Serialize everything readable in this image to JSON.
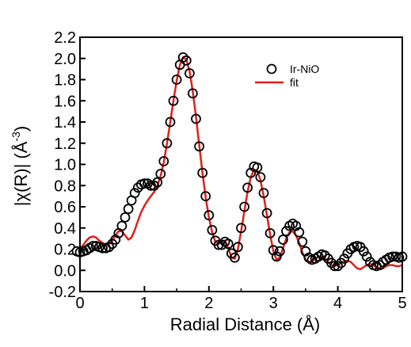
{
  "chart_data": {
    "type": "scatter",
    "xlabel": "Radial Distance (Å)",
    "ylabel": "|χ(R)| (Å",
    "ylabel_sup": "-3",
    "ylabel_close": ")",
    "xlim": [
      0,
      5
    ],
    "ylim": [
      -0.2,
      2.2
    ],
    "x_ticks": [
      0,
      1,
      2,
      3,
      4,
      5
    ],
    "x_tick_labels": [
      "0",
      "1",
      "2",
      "3",
      "4",
      "5"
    ],
    "y_ticks": [
      -0.2,
      0.0,
      0.2,
      0.4,
      0.6,
      0.8,
      1.0,
      1.2,
      1.4,
      1.6,
      1.8,
      2.0,
      2.2
    ],
    "y_tick_labels": [
      "-0.2",
      "0.0",
      "0.2",
      "0.4",
      "0.6",
      "0.8",
      "1.0",
      "1.2",
      "1.4",
      "1.6",
      "1.8",
      "2.0",
      "2.2"
    ],
    "grid": false,
    "legend_position": "top-right",
    "series": [
      {
        "name": "Ir-NiO",
        "style": "open-circle",
        "color": "#000000",
        "points": [
          [
            -0.05,
            0.18
          ],
          [
            0.0,
            0.17
          ],
          [
            0.05,
            0.18
          ],
          [
            0.1,
            0.19
          ],
          [
            0.15,
            0.21
          ],
          [
            0.2,
            0.23
          ],
          [
            0.25,
            0.23
          ],
          [
            0.3,
            0.22
          ],
          [
            0.35,
            0.21
          ],
          [
            0.4,
            0.21
          ],
          [
            0.45,
            0.22
          ],
          [
            0.5,
            0.25
          ],
          [
            0.55,
            0.29
          ],
          [
            0.6,
            0.35
          ],
          [
            0.65,
            0.42
          ],
          [
            0.7,
            0.5
          ],
          [
            0.75,
            0.58
          ],
          [
            0.8,
            0.66
          ],
          [
            0.85,
            0.73
          ],
          [
            0.9,
            0.78
          ],
          [
            0.95,
            0.81
          ],
          [
            1.0,
            0.82
          ],
          [
            1.05,
            0.82
          ],
          [
            1.1,
            0.8
          ],
          [
            1.15,
            0.8
          ],
          [
            1.2,
            0.83
          ],
          [
            1.25,
            0.91
          ],
          [
            1.3,
            1.03
          ],
          [
            1.35,
            1.2
          ],
          [
            1.4,
            1.4
          ],
          [
            1.45,
            1.6
          ],
          [
            1.5,
            1.8
          ],
          [
            1.55,
            1.94
          ],
          [
            1.6,
            2.01
          ],
          [
            1.65,
            1.98
          ],
          [
            1.7,
            1.86
          ],
          [
            1.75,
            1.67
          ],
          [
            1.8,
            1.43
          ],
          [
            1.85,
            1.17
          ],
          [
            1.9,
            0.92
          ],
          [
            1.95,
            0.7
          ],
          [
            2.0,
            0.52
          ],
          [
            2.05,
            0.38
          ],
          [
            2.1,
            0.28
          ],
          [
            2.15,
            0.24
          ],
          [
            2.2,
            0.24
          ],
          [
            2.25,
            0.27
          ],
          [
            2.3,
            0.25
          ],
          [
            2.35,
            0.16
          ],
          [
            2.4,
            0.12
          ],
          [
            2.45,
            0.22
          ],
          [
            2.5,
            0.4
          ],
          [
            2.55,
            0.6
          ],
          [
            2.6,
            0.78
          ],
          [
            2.65,
            0.92
          ],
          [
            2.7,
            0.98
          ],
          [
            2.75,
            0.97
          ],
          [
            2.8,
            0.88
          ],
          [
            2.85,
            0.73
          ],
          [
            2.9,
            0.54
          ],
          [
            2.95,
            0.35
          ],
          [
            3.0,
            0.19
          ],
          [
            3.05,
            0.13
          ],
          [
            3.1,
            0.18
          ],
          [
            3.15,
            0.29
          ],
          [
            3.2,
            0.37
          ],
          [
            3.25,
            0.42
          ],
          [
            3.3,
            0.44
          ],
          [
            3.35,
            0.42
          ],
          [
            3.4,
            0.36
          ],
          [
            3.45,
            0.27
          ],
          [
            3.5,
            0.18
          ],
          [
            3.55,
            0.12
          ],
          [
            3.6,
            0.1
          ],
          [
            3.65,
            0.11
          ],
          [
            3.7,
            0.13
          ],
          [
            3.75,
            0.15
          ],
          [
            3.8,
            0.14
          ],
          [
            3.85,
            0.11
          ],
          [
            3.9,
            0.07
          ],
          [
            3.95,
            0.04
          ],
          [
            4.0,
            0.04
          ],
          [
            4.05,
            0.07
          ],
          [
            4.1,
            0.11
          ],
          [
            4.15,
            0.16
          ],
          [
            4.2,
            0.2
          ],
          [
            4.25,
            0.22
          ],
          [
            4.3,
            0.23
          ],
          [
            4.35,
            0.22
          ],
          [
            4.4,
            0.18
          ],
          [
            4.45,
            0.13
          ],
          [
            4.5,
            0.08
          ],
          [
            4.55,
            0.05
          ],
          [
            4.6,
            0.04
          ],
          [
            4.65,
            0.05
          ],
          [
            4.7,
            0.08
          ],
          [
            4.75,
            0.1
          ],
          [
            4.8,
            0.12
          ],
          [
            4.85,
            0.13
          ],
          [
            4.9,
            0.13
          ],
          [
            4.95,
            0.12
          ],
          [
            5.0,
            0.13
          ]
        ]
      },
      {
        "name": "fit",
        "style": "line",
        "color": "#e0201a",
        "points": [
          [
            0.0,
            0.2
          ],
          [
            0.05,
            0.24
          ],
          [
            0.1,
            0.28
          ],
          [
            0.15,
            0.31
          ],
          [
            0.2,
            0.32
          ],
          [
            0.25,
            0.31
          ],
          [
            0.3,
            0.28
          ],
          [
            0.35,
            0.26
          ],
          [
            0.4,
            0.24
          ],
          [
            0.45,
            0.25
          ],
          [
            0.5,
            0.28
          ],
          [
            0.55,
            0.33
          ],
          [
            0.6,
            0.37
          ],
          [
            0.65,
            0.37
          ],
          [
            0.7,
            0.33
          ],
          [
            0.75,
            0.29
          ],
          [
            0.8,
            0.31
          ],
          [
            0.85,
            0.38
          ],
          [
            0.9,
            0.47
          ],
          [
            0.95,
            0.55
          ],
          [
            1.0,
            0.61
          ],
          [
            1.05,
            0.66
          ],
          [
            1.1,
            0.7
          ],
          [
            1.15,
            0.74
          ],
          [
            1.2,
            0.8
          ],
          [
            1.25,
            0.89
          ],
          [
            1.3,
            1.02
          ],
          [
            1.35,
            1.2
          ],
          [
            1.4,
            1.4
          ],
          [
            1.45,
            1.6
          ],
          [
            1.5,
            1.79
          ],
          [
            1.55,
            1.94
          ],
          [
            1.6,
            2.01
          ],
          [
            1.65,
            1.99
          ],
          [
            1.7,
            1.88
          ],
          [
            1.75,
            1.69
          ],
          [
            1.8,
            1.45
          ],
          [
            1.85,
            1.18
          ],
          [
            1.9,
            0.92
          ],
          [
            1.95,
            0.69
          ],
          [
            2.0,
            0.5
          ],
          [
            2.05,
            0.36
          ],
          [
            2.1,
            0.27
          ],
          [
            2.15,
            0.25
          ],
          [
            2.2,
            0.28
          ],
          [
            2.25,
            0.28
          ],
          [
            2.3,
            0.21
          ],
          [
            2.35,
            0.12
          ],
          [
            2.4,
            0.11
          ],
          [
            2.45,
            0.2
          ],
          [
            2.5,
            0.37
          ],
          [
            2.55,
            0.56
          ],
          [
            2.6,
            0.74
          ],
          [
            2.65,
            0.88
          ],
          [
            2.7,
            0.95
          ],
          [
            2.75,
            0.94
          ],
          [
            2.8,
            0.85
          ],
          [
            2.85,
            0.7
          ],
          [
            2.9,
            0.52
          ],
          [
            2.95,
            0.34
          ],
          [
            3.0,
            0.18
          ],
          [
            3.05,
            0.1
          ],
          [
            3.1,
            0.12
          ],
          [
            3.15,
            0.21
          ],
          [
            3.2,
            0.3
          ],
          [
            3.25,
            0.36
          ],
          [
            3.3,
            0.37
          ],
          [
            3.35,
            0.33
          ],
          [
            3.4,
            0.26
          ],
          [
            3.45,
            0.17
          ],
          [
            3.5,
            0.1
          ],
          [
            3.55,
            0.07
          ],
          [
            3.6,
            0.08
          ],
          [
            3.65,
            0.11
          ],
          [
            3.7,
            0.13
          ],
          [
            3.75,
            0.13
          ],
          [
            3.8,
            0.11
          ],
          [
            3.85,
            0.08
          ],
          [
            3.9,
            0.05
          ],
          [
            3.95,
            0.04
          ],
          [
            4.0,
            0.05
          ],
          [
            4.05,
            0.07
          ],
          [
            4.1,
            0.09
          ],
          [
            4.15,
            0.09
          ],
          [
            4.2,
            0.08
          ],
          [
            4.25,
            0.05
          ],
          [
            4.3,
            0.02
          ],
          [
            4.35,
            0.01
          ],
          [
            4.4,
            0.03
          ],
          [
            4.45,
            0.05
          ],
          [
            4.5,
            0.06
          ],
          [
            4.55,
            0.05
          ],
          [
            4.6,
            0.03
          ],
          [
            4.65,
            0.02
          ],
          [
            4.7,
            0.02
          ],
          [
            4.75,
            0.04
          ],
          [
            4.8,
            0.05
          ],
          [
            4.85,
            0.05
          ],
          [
            4.9,
            0.04
          ],
          [
            4.95,
            0.04
          ],
          [
            5.0,
            0.05
          ]
        ]
      }
    ]
  }
}
